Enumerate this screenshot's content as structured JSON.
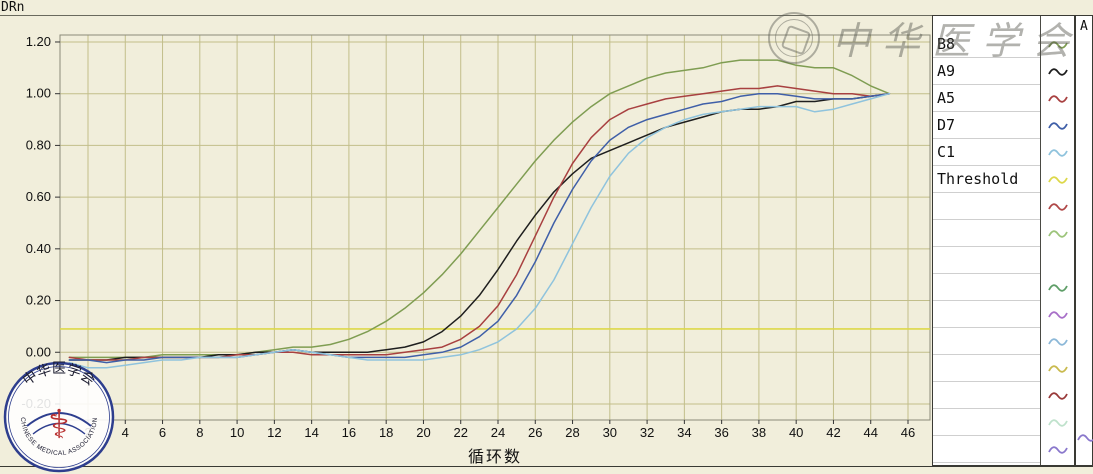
{
  "axis": {
    "y_title": "DRn",
    "x_title": "循环数"
  },
  "chart_data": {
    "type": "line",
    "title": "",
    "xlabel": "循环数",
    "ylabel": "DRn",
    "xlim": [
      0.5,
      47.2
    ],
    "ylim": [
      -0.26,
      1.23
    ],
    "grid": true,
    "legend_position": "right",
    "x_ticks": [
      2,
      4,
      6,
      8,
      10,
      12,
      14,
      16,
      18,
      20,
      22,
      24,
      26,
      28,
      30,
      32,
      34,
      36,
      38,
      40,
      42,
      44,
      46
    ],
    "y_tick_labels": [
      "1.20",
      "1.00",
      "0.80",
      "0.60",
      "0.40",
      "0.20",
      "0.00",
      "-0.20"
    ],
    "x": [
      1,
      2,
      3,
      4,
      5,
      6,
      7,
      8,
      9,
      10,
      11,
      12,
      13,
      14,
      15,
      16,
      17,
      18,
      19,
      20,
      21,
      22,
      23,
      24,
      25,
      26,
      27,
      28,
      29,
      30,
      31,
      32,
      33,
      34,
      35,
      36,
      37,
      38,
      39,
      40,
      41,
      42,
      43,
      44,
      45
    ],
    "series": [
      {
        "name": "B8",
        "color": "#7f9d52",
        "values": [
          -0.02,
          -0.02,
          -0.02,
          -0.02,
          -0.02,
          -0.01,
          -0.01,
          -0.01,
          -0.01,
          -0.01,
          0.0,
          0.01,
          0.02,
          0.02,
          0.03,
          0.05,
          0.08,
          0.12,
          0.17,
          0.23,
          0.3,
          0.38,
          0.47,
          0.56,
          0.65,
          0.74,
          0.82,
          0.89,
          0.95,
          1.0,
          1.03,
          1.06,
          1.08,
          1.09,
          1.1,
          1.12,
          1.13,
          1.13,
          1.13,
          1.11,
          1.1,
          1.1,
          1.07,
          1.03,
          1.0
        ]
      },
      {
        "name": "A9",
        "color": "#1e1e1e",
        "values": [
          -0.03,
          -0.03,
          -0.03,
          -0.02,
          -0.02,
          -0.02,
          -0.02,
          -0.02,
          -0.01,
          -0.01,
          0.0,
          0.0,
          0.01,
          0.0,
          0.0,
          0.0,
          0.0,
          0.01,
          0.02,
          0.04,
          0.08,
          0.14,
          0.22,
          0.32,
          0.43,
          0.53,
          0.62,
          0.69,
          0.75,
          0.78,
          0.81,
          0.84,
          0.87,
          0.89,
          0.91,
          0.93,
          0.94,
          0.94,
          0.95,
          0.97,
          0.97,
          0.98,
          0.98,
          0.99,
          1.0
        ]
      },
      {
        "name": "A5",
        "color": "#a84040",
        "values": [
          -0.02,
          -0.03,
          -0.03,
          -0.03,
          -0.02,
          -0.02,
          -0.02,
          -0.02,
          -0.02,
          -0.01,
          -0.01,
          0.0,
          0.0,
          -0.01,
          -0.01,
          -0.01,
          -0.01,
          -0.01,
          0.0,
          0.01,
          0.02,
          0.05,
          0.1,
          0.18,
          0.3,
          0.45,
          0.6,
          0.73,
          0.83,
          0.9,
          0.94,
          0.96,
          0.98,
          0.99,
          1.0,
          1.01,
          1.02,
          1.02,
          1.03,
          1.02,
          1.01,
          1.0,
          1.0,
          0.99,
          1.0
        ]
      },
      {
        "name": "D7",
        "color": "#3f5fa8",
        "values": [
          -0.03,
          -0.03,
          -0.04,
          -0.03,
          -0.03,
          -0.02,
          -0.02,
          -0.02,
          -0.02,
          -0.02,
          -0.01,
          0.0,
          0.01,
          0.0,
          -0.01,
          -0.02,
          -0.02,
          -0.02,
          -0.02,
          -0.01,
          0.0,
          0.02,
          0.06,
          0.12,
          0.22,
          0.35,
          0.5,
          0.63,
          0.74,
          0.82,
          0.87,
          0.9,
          0.92,
          0.94,
          0.96,
          0.97,
          0.99,
          1.0,
          1.0,
          0.99,
          0.98,
          0.98,
          0.98,
          0.99,
          1.0
        ]
      },
      {
        "name": "C1",
        "color": "#8fc3dd",
        "values": [
          -0.04,
          -0.06,
          -0.06,
          -0.05,
          -0.04,
          -0.03,
          -0.03,
          -0.02,
          -0.02,
          -0.02,
          -0.01,
          0.0,
          0.01,
          0.0,
          -0.01,
          -0.02,
          -0.03,
          -0.03,
          -0.03,
          -0.03,
          -0.02,
          -0.01,
          0.01,
          0.04,
          0.09,
          0.17,
          0.28,
          0.42,
          0.56,
          0.68,
          0.77,
          0.83,
          0.87,
          0.9,
          0.92,
          0.93,
          0.94,
          0.95,
          0.95,
          0.95,
          0.93,
          0.94,
          0.96,
          0.98,
          1.0
        ]
      }
    ],
    "threshold": {
      "label": "Threshold",
      "value": 0.09,
      "color": "#ddd84a"
    },
    "colors": {
      "plot_bg": "#f1eedb",
      "grid": "#c2be8a",
      "border": "#8b8b7a",
      "tick_text": "#111111"
    }
  },
  "legend": {
    "items": [
      {
        "label": "B8",
        "color": "#7f9d52"
      },
      {
        "label": "A9",
        "color": "#1e1e1e"
      },
      {
        "label": "A5",
        "color": "#a84040"
      },
      {
        "label": "D7",
        "color": "#3f5fa8"
      },
      {
        "label": "C1",
        "color": "#8fc3dd"
      },
      {
        "label": "Threshold",
        "color": "#ddd84a"
      },
      {
        "label": "",
        "color": "#b04848"
      },
      {
        "label": "",
        "color": "#9cc47a"
      },
      {
        "label": "",
        "color": ""
      },
      {
        "label": "",
        "color": "#5f9e68"
      },
      {
        "label": "",
        "color": "#a86fc8"
      },
      {
        "label": "",
        "color": "#8cb8d8"
      },
      {
        "label": "",
        "color": "#c9ba4e"
      },
      {
        "label": "",
        "color": "#993a3a"
      },
      {
        "label": "",
        "color": "#bfe2cc"
      },
      {
        "label": "",
        "color": "#8a78cc"
      }
    ]
  },
  "right_strip": {
    "top_label": "A",
    "bottom_icon_color": "#8a78cc"
  },
  "watermarks": {
    "top_right_text": "中华医学会",
    "logo_top_text": "中华医学会",
    "logo_bottom_text": "CHINESE MEDICAL ASSOCIATION"
  }
}
